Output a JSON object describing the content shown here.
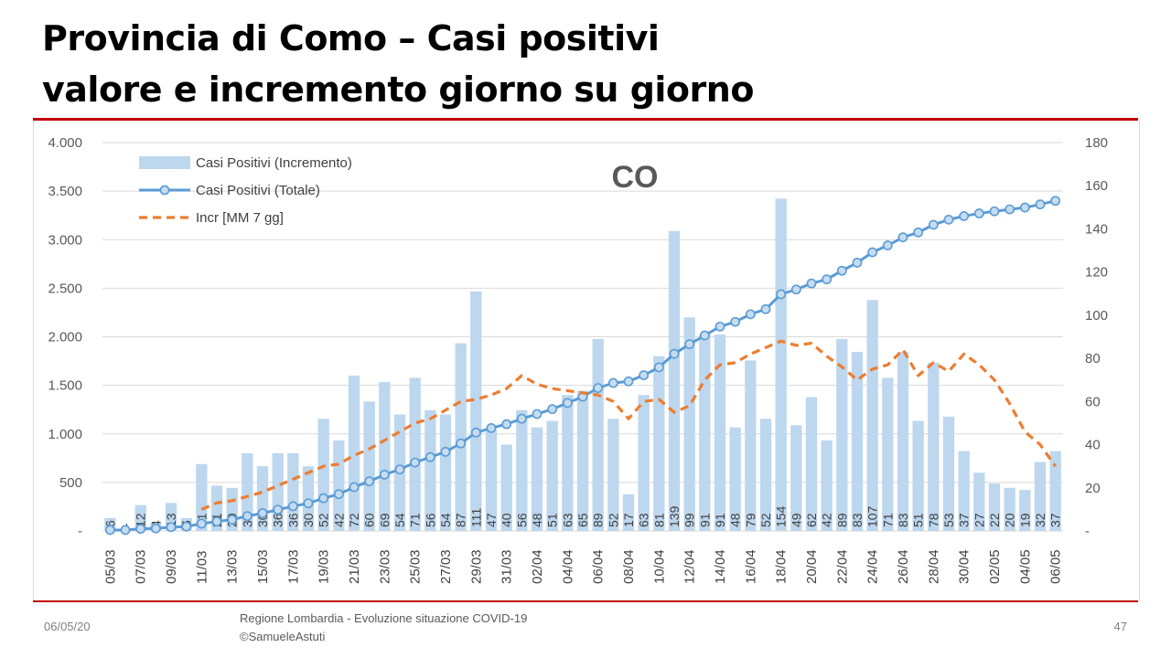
{
  "slide": {
    "title_line1": "Provincia di Como – Casi positivi",
    "title_line2": "valore e incremento giorno su giorno",
    "footer_date": "06/05/20",
    "footer_source": "Regione Lombardia - Evoluzione situazione COVID-19",
    "footer_author": "©SamueleAstuti",
    "page_number": "47"
  },
  "colors": {
    "bars": "#bdd7ee",
    "line": "#5b9bd5",
    "marker_fill": "#c6dcf0",
    "ma": "#ed7d31",
    "rule": "#c00000"
  },
  "chart_data": {
    "type": "bar+line",
    "annotation": "CO",
    "legend": [
      "Casi Positivi (Incremento)",
      "Casi Positivi (Totale)",
      "Incr [MM 7 gg]"
    ],
    "legend_position": "top-left",
    "grid": true,
    "x_tick_labels": [
      "05/03",
      "07/03",
      "09/03",
      "11/03",
      "13/03",
      "15/03",
      "17/03",
      "19/03",
      "21/03",
      "23/03",
      "25/03",
      "27/03",
      "29/03",
      "31/03",
      "02/04",
      "04/04",
      "06/04",
      "08/04",
      "10/04",
      "12/04",
      "14/04",
      "16/04",
      "18/04",
      "20/04",
      "22/04",
      "24/04",
      "26/04",
      "28/04",
      "30/04",
      "02/05",
      "04/05",
      "06/05"
    ],
    "y_left": {
      "lim": [
        0,
        4000
      ],
      "ticks": [
        "-",
        "500",
        "1.000",
        "1.500",
        "2.000",
        "2.500",
        "3.000",
        "3.500",
        "4.000"
      ]
    },
    "y_right": {
      "lim": [
        0,
        180
      ],
      "ticks": [
        "-",
        "20",
        "40",
        "60",
        "80",
        "100",
        "120",
        "140",
        "160",
        "180"
      ]
    },
    "series": [
      {
        "name": "Casi Positivi (Incremento)",
        "axis": "right",
        "type": "bar",
        "values": [
          6,
          0,
          12,
          4,
          13,
          6,
          31,
          21,
          20,
          36,
          30,
          36,
          36,
          30,
          52,
          42,
          72,
          60,
          69,
          54,
          71,
          56,
          54,
          87,
          111,
          47,
          40,
          56,
          48,
          51,
          63,
          65,
          89,
          52,
          17,
          63,
          81,
          139,
          99,
          91,
          91,
          48,
          79,
          52,
          154,
          49,
          62,
          42,
          89,
          83,
          107,
          71,
          83,
          51,
          78,
          53,
          37,
          27,
          22,
          20,
          19,
          32,
          37
        ],
        "data_labels": [
          "6",
          "-",
          "12",
          "4",
          "13",
          "6",
          "31",
          "21",
          "20",
          "36",
          "30",
          "36",
          "36",
          "30",
          "52",
          "42",
          "72",
          "60",
          "69",
          "54",
          "71",
          "56",
          "54",
          "87",
          "111",
          "47",
          "40",
          "56",
          "48",
          "51",
          "63",
          "65",
          "89",
          "52",
          "17",
          "63",
          "81",
          "139",
          "99",
          "91",
          "91",
          "48",
          "79",
          "52",
          "154",
          "49",
          "62",
          "42",
          "89",
          "83",
          "107",
          "71",
          "83",
          "51",
          "78",
          "53",
          "37",
          "27",
          "22",
          "20",
          "19",
          "32",
          "37"
        ]
      },
      {
        "name": "Casi Positivi (Totale)",
        "axis": "left",
        "type": "line",
        "values": [
          10,
          10,
          22,
          26,
          39,
          45,
          76,
          97,
          117,
          153,
          183,
          219,
          255,
          285,
          337,
          379,
          451,
          511,
          580,
          634,
          705,
          761,
          815,
          902,
          1013,
          1060,
          1100,
          1156,
          1204,
          1255,
          1318,
          1383,
          1472,
          1524,
          1541,
          1604,
          1685,
          1824,
          1923,
          2014,
          2105,
          2153,
          2232,
          2284,
          2438,
          2487,
          2549,
          2591,
          2680,
          2763,
          2870,
          2941,
          3024,
          3075,
          3153,
          3206,
          3243,
          3270,
          3292,
          3312,
          3331,
          3363,
          3400
        ]
      },
      {
        "name": "Incr [MM 7 gg]",
        "axis": "right",
        "type": "line-dashed",
        "values": [
          null,
          null,
          null,
          null,
          null,
          null,
          10,
          13,
          14,
          16,
          18,
          21,
          24,
          27,
          30,
          31,
          35,
          38,
          42,
          46,
          50,
          52,
          56,
          60,
          61,
          63,
          66,
          72,
          68,
          66,
          65,
          64,
          63,
          60,
          52,
          60,
          61,
          55,
          58,
          70,
          77,
          78,
          82,
          85,
          88,
          86,
          87,
          81,
          76,
          70,
          75,
          77,
          84,
          72,
          78,
          74,
          82,
          77,
          70,
          59,
          46,
          40,
          30
        ]
      }
    ]
  }
}
